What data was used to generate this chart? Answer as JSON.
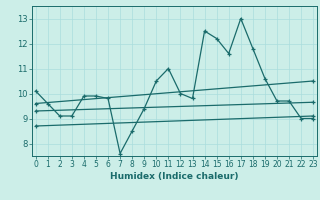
{
  "xlabel": "Humidex (Indice chaleur)",
  "bg_color": "#cceee8",
  "line_color": "#1a6b6b",
  "grid_color": "#aadddd",
  "x": [
    0,
    1,
    2,
    3,
    4,
    5,
    6,
    7,
    8,
    9,
    10,
    11,
    12,
    13,
    14,
    15,
    16,
    17,
    18,
    19,
    20,
    21,
    22,
    23
  ],
  "line1": [
    10.1,
    9.6,
    9.1,
    9.1,
    9.9,
    9.9,
    9.8,
    7.6,
    8.5,
    9.4,
    10.5,
    11.0,
    10.0,
    9.8,
    12.5,
    12.2,
    11.6,
    13.0,
    11.8,
    10.6,
    9.7,
    9.7,
    9.0,
    9.0
  ],
  "line2_x": [
    0,
    23
  ],
  "line2_y": [
    9.6,
    10.5
  ],
  "line3_x": [
    0,
    23
  ],
  "line3_y": [
    9.3,
    9.65
  ],
  "line4_x": [
    0,
    23
  ],
  "line4_y": [
    8.7,
    9.1
  ],
  "ylim": [
    7.5,
    13.5
  ],
  "xlim": [
    -0.3,
    23.3
  ],
  "yticks": [
    8,
    9,
    10,
    11,
    12,
    13
  ],
  "xticks": [
    0,
    1,
    2,
    3,
    4,
    5,
    6,
    7,
    8,
    9,
    10,
    11,
    12,
    13,
    14,
    15,
    16,
    17,
    18,
    19,
    20,
    21,
    22,
    23
  ],
  "xlabel_fontsize": 6.5,
  "tick_fontsize": 5.5
}
